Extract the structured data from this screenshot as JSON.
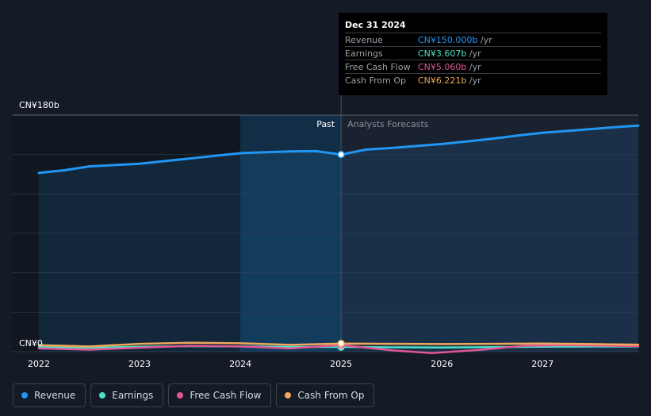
{
  "chart_data": {
    "type": "line",
    "y_axis": {
      "min": 0,
      "max": 180,
      "top_label": "CN¥180b",
      "bottom_label": "CN¥0"
    },
    "x_axis": {
      "min": 2022,
      "max": 2027.95,
      "ticks": [
        "2022",
        "2023",
        "2024",
        "2025",
        "2026",
        "2027"
      ]
    },
    "section_labels": {
      "past": "Past",
      "forecast": "Analysts Forecasts"
    },
    "divider_x": 2025,
    "highlight_start_x": 2024,
    "series": [
      {
        "name": "Revenue",
        "color": "#2196f3",
        "points": [
          [
            2022.0,
            136
          ],
          [
            2022.25,
            138
          ],
          [
            2022.5,
            141
          ],
          [
            2022.75,
            142
          ],
          [
            2023.0,
            143
          ],
          [
            2023.25,
            145
          ],
          [
            2023.5,
            147
          ],
          [
            2023.75,
            149
          ],
          [
            2024.0,
            151
          ],
          [
            2024.25,
            151.8
          ],
          [
            2024.5,
            152.4
          ],
          [
            2024.75,
            152.6
          ],
          [
            2025.0,
            150.0
          ],
          [
            2025.25,
            153.8
          ],
          [
            2025.5,
            155
          ],
          [
            2025.75,
            156.5
          ],
          [
            2026.0,
            158
          ],
          [
            2026.25,
            160
          ],
          [
            2026.5,
            162
          ],
          [
            2026.75,
            164.5
          ],
          [
            2027.0,
            166.5
          ],
          [
            2027.25,
            168
          ],
          [
            2027.5,
            169.5
          ],
          [
            2027.75,
            171
          ],
          [
            2027.95,
            172
          ]
        ]
      },
      {
        "name": "Earnings",
        "color": "#4de0c8",
        "points": [
          [
            2022.0,
            3.5
          ],
          [
            2022.5,
            3.0
          ],
          [
            2023.0,
            3.8
          ],
          [
            2023.5,
            4.2
          ],
          [
            2024.0,
            4.0
          ],
          [
            2024.5,
            3.6
          ],
          [
            2025.0,
            3.607
          ],
          [
            2025.5,
            3.3
          ],
          [
            2026.0,
            3.2
          ],
          [
            2026.5,
            3.5
          ],
          [
            2027.0,
            3.8
          ],
          [
            2027.5,
            3.9
          ],
          [
            2027.95,
            4.0
          ]
        ]
      },
      {
        "name": "Free Cash Flow",
        "color": "#e05594",
        "points": [
          [
            2022.0,
            2.5
          ],
          [
            2022.5,
            1.5
          ],
          [
            2023.0,
            3.0
          ],
          [
            2023.5,
            4.5
          ],
          [
            2024.0,
            4.0
          ],
          [
            2024.5,
            2.5
          ],
          [
            2025.0,
            5.06
          ],
          [
            2025.5,
            1.0
          ],
          [
            2025.9,
            -1.0
          ],
          [
            2026.4,
            1.5
          ],
          [
            2026.8,
            4.5
          ],
          [
            2027.2,
            5.0
          ],
          [
            2027.6,
            4.6
          ],
          [
            2027.95,
            4.2
          ]
        ]
      },
      {
        "name": "Cash From Op",
        "color": "#f0a85a",
        "points": [
          [
            2022.0,
            5.0
          ],
          [
            2022.5,
            4.0
          ],
          [
            2023.0,
            6.0
          ],
          [
            2023.5,
            6.8
          ],
          [
            2024.0,
            6.4
          ],
          [
            2024.5,
            5.2
          ],
          [
            2025.0,
            6.221
          ],
          [
            2025.5,
            6.0
          ],
          [
            2026.0,
            5.8
          ],
          [
            2026.5,
            6.0
          ],
          [
            2027.0,
            6.2
          ],
          [
            2027.5,
            5.8
          ],
          [
            2027.95,
            5.4
          ]
        ]
      }
    ]
  },
  "tooltip": {
    "date": "Dec 31 2024",
    "rows": [
      {
        "label": "Revenue",
        "value": "CN¥150.000b",
        "unit": " /yr",
        "color": "#2196f3"
      },
      {
        "label": "Earnings",
        "value": "CN¥3.607b",
        "unit": " /yr",
        "color": "#4de0c8"
      },
      {
        "label": "Free Cash Flow",
        "value": "CN¥5.060b",
        "unit": " /yr",
        "color": "#e05594"
      },
      {
        "label": "Cash From Op",
        "value": "CN¥6.221b",
        "unit": " /yr",
        "color": "#f0a85a"
      }
    ]
  },
  "legend": [
    {
      "label": "Revenue",
      "color": "#2196f3"
    },
    {
      "label": "Earnings",
      "color": "#4de0c8"
    },
    {
      "label": "Free Cash Flow",
      "color": "#e05594"
    },
    {
      "label": "Cash From Op",
      "color": "#f0a85a"
    }
  ]
}
